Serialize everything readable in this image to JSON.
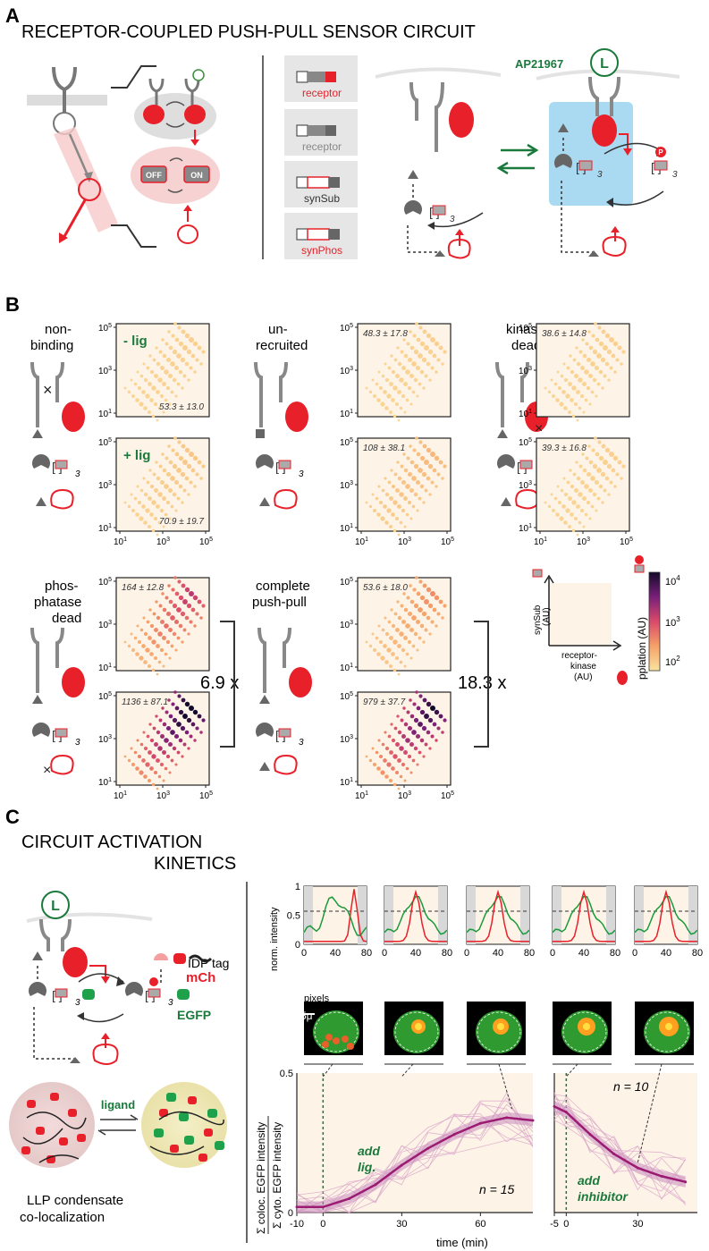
{
  "panel_a": {
    "letter": "A",
    "title": "RECEPTOR-COUPLED PUSH-PULL SENSOR CIRCUIT",
    "toggle_off": "OFF",
    "toggle_on": "ON",
    "constructs": [
      "receptor",
      "receptor",
      "synSub",
      "synPhos"
    ],
    "ligand_name": "AP21967",
    "ligand_symbol": "L",
    "phospho_symbol": "P",
    "subscript": "3"
  },
  "panel_b": {
    "letter": "B",
    "row1_label": [
      "non-",
      "binding"
    ],
    "row1_minus": "- lig",
    "row1_plus": "+ lig",
    "col2_label": [
      "un-",
      "recruited"
    ],
    "col3_label": [
      "kinase",
      "dead"
    ],
    "row2_label": [
      "phos-",
      "phatase",
      "dead"
    ],
    "row2_col2_label": [
      "complete",
      "push-pull"
    ],
    "fold1": "6.9 x",
    "fold2": "18.3 x",
    "stats": {
      "nb_minus": "53.3 ± 13.0",
      "nb_plus": "70.9 ± 19.7",
      "ur_minus": "48.3 ± 17.8",
      "ur_plus": "108 ± 38.1",
      "kd_minus": "38.6 ± 14.8",
      "kd_plus": "39.3 ± 16.8",
      "pd_minus": "164 ± 12.8",
      "pd_plus": "1136 ± 87.1",
      "cp_minus": "53.6 ± 18.0",
      "cp_plus": "979 ± 37.7"
    },
    "ytick_top": "10",
    "ytick_top_exp": "5",
    "ytick_mid": "10",
    "ytick_mid_exp": "3",
    "ytick_bot": "10",
    "ytick_bot_exp": "1",
    "legend_y": [
      "synSub",
      "(AU)"
    ],
    "legend_x": [
      "receptor-",
      "kinase",
      "(AU)"
    ],
    "colorbar_label": "pplation (AU)",
    "colorbar_ticks": [
      {
        "b": "10",
        "e": "4"
      },
      {
        "b": "10",
        "e": "3"
      },
      {
        "b": "10",
        "e": "2"
      }
    ]
  },
  "panel_c": {
    "letter": "C",
    "title_line1": "CIRCUIT ACTIVATION",
    "title_line2": "KINETICS",
    "idp_tag": "IDP tag",
    "mch": "mCh",
    "egfp": "EGFP",
    "ligand": "ligand",
    "condensate_l1": "LLP condensate",
    "condensate_l2": "co-localization",
    "profile_ylabel": "norm. intensity",
    "profile_xlabel": "pixels",
    "profile_xticks": [
      "0",
      "40",
      "80"
    ],
    "profile_yticks": [
      "1",
      "0.5",
      "0"
    ],
    "scale_bar": "5μ",
    "kin_ylabel_top": "Σ coloc. EGFP intensity",
    "kin_ylabel_bot": "Σ cyto. EGFP intensity",
    "kin_xlabel": "time (min)",
    "kin_xticks_left": [
      "-10",
      "0",
      "30",
      "60"
    ],
    "kin_xticks_right": [
      "-5",
      "0",
      "30"
    ],
    "kin_ytick_top": "0.5",
    "kin_ytick_bot": "0",
    "add_lig": [
      "add",
      "lig."
    ],
    "add_inh": [
      "add",
      "inhibitor"
    ],
    "n_left": "n = 15",
    "n_right": "n = 10"
  },
  "colors": {
    "red": "#e8202a",
    "green": "#1a7a3c",
    "gray": "#888888",
    "magenta": "#9b1b72",
    "plot_bg": "#fdf3e7",
    "cell_green": "#2f9a2f"
  },
  "chart_data": {
    "type": "line",
    "title": "",
    "xlabel": "time (min)",
    "ylabel": "Σ coloc. EGFP intensity / Σ cyto. EGFP intensity",
    "ylim": [
      0,
      0.5
    ],
    "series": [
      {
        "name": "",
        "x": [
          -10,
          0,
          10,
          20,
          30,
          40,
          50,
          60,
          70,
          80
        ],
        "values": [
          0.02,
          0.02,
          0.05,
          0.1,
          0.17,
          0.23,
          0.28,
          0.32,
          0.34,
          0.33
        ]
      },
      {
        "name": "",
        "x": [
          -5,
          0,
          10,
          20,
          30,
          40,
          50
        ],
        "values": [
          0.38,
          0.36,
          0.28,
          0.21,
          0.16,
          0.13,
          0.11
        ]
      }
    ]
  }
}
